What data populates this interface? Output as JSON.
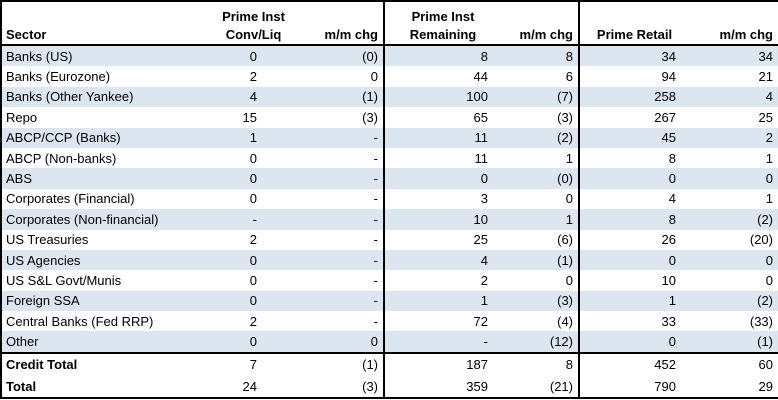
{
  "chart_data": {
    "type": "table",
    "header": {
      "sector": "Sector",
      "prime_inst_conv_line1": "Prime Inst",
      "prime_inst_conv_line2": "Conv/Liq",
      "mm_chg_1": "m/m chg",
      "prime_inst_rem_line1": "Prime Inst",
      "prime_inst_rem_line2": "Remaining",
      "mm_chg_2": "m/m chg",
      "prime_retail": "Prime Retail",
      "mm_chg_3": "m/m chg"
    },
    "rows": [
      [
        "Banks (US)",
        "0",
        "(0)",
        "8",
        "8",
        "34",
        "34"
      ],
      [
        "Banks (Eurozone)",
        "2",
        "0",
        "44",
        "6",
        "94",
        "21"
      ],
      [
        "Banks (Other Yankee)",
        "4",
        "(1)",
        "100",
        "(7)",
        "258",
        "4"
      ],
      [
        "Repo",
        "15",
        "(3)",
        "65",
        "(3)",
        "267",
        "25"
      ],
      [
        "ABCP/CCP (Banks)",
        "1",
        "-",
        "11",
        "(2)",
        "45",
        "2"
      ],
      [
        "ABCP (Non-banks)",
        "0",
        "-",
        "11",
        "1",
        "8",
        "1"
      ],
      [
        "ABS",
        "0",
        "-",
        "0",
        "(0)",
        "0",
        "0"
      ],
      [
        "Corporates (Financial)",
        "0",
        "-",
        "3",
        "0",
        "4",
        "1"
      ],
      [
        "Corporates (Non-financial)",
        "-",
        "-",
        "10",
        "1",
        "8",
        "(2)"
      ],
      [
        "US Treasuries",
        "2",
        "-",
        "25",
        "(6)",
        "26",
        "(20)"
      ],
      [
        "US Agencies",
        "0",
        "-",
        "4",
        "(1)",
        "0",
        "0"
      ],
      [
        "US S&L Govt/Munis",
        "0",
        "-",
        "2",
        "0",
        "10",
        "0"
      ],
      [
        "Foreign SSA",
        "0",
        "-",
        "1",
        "(3)",
        "1",
        "(2)"
      ],
      [
        "Central Banks (Fed RRP)",
        "2",
        "-",
        "72",
        "(4)",
        "33",
        "(33)"
      ],
      [
        "Other",
        "0",
        "0",
        "-",
        "(12)",
        "0",
        "(1)"
      ]
    ],
    "total_rows": [
      [
        "Credit Total",
        "7",
        "(1)",
        "187",
        "8",
        "452",
        "60"
      ],
      [
        "Total",
        "24",
        "(3)",
        "359",
        "(21)",
        "790",
        "29"
      ]
    ],
    "colors": {
      "row_shade": "#dce6f1",
      "border": "#000000",
      "text": "#000000",
      "background": "#ffffff"
    }
  }
}
